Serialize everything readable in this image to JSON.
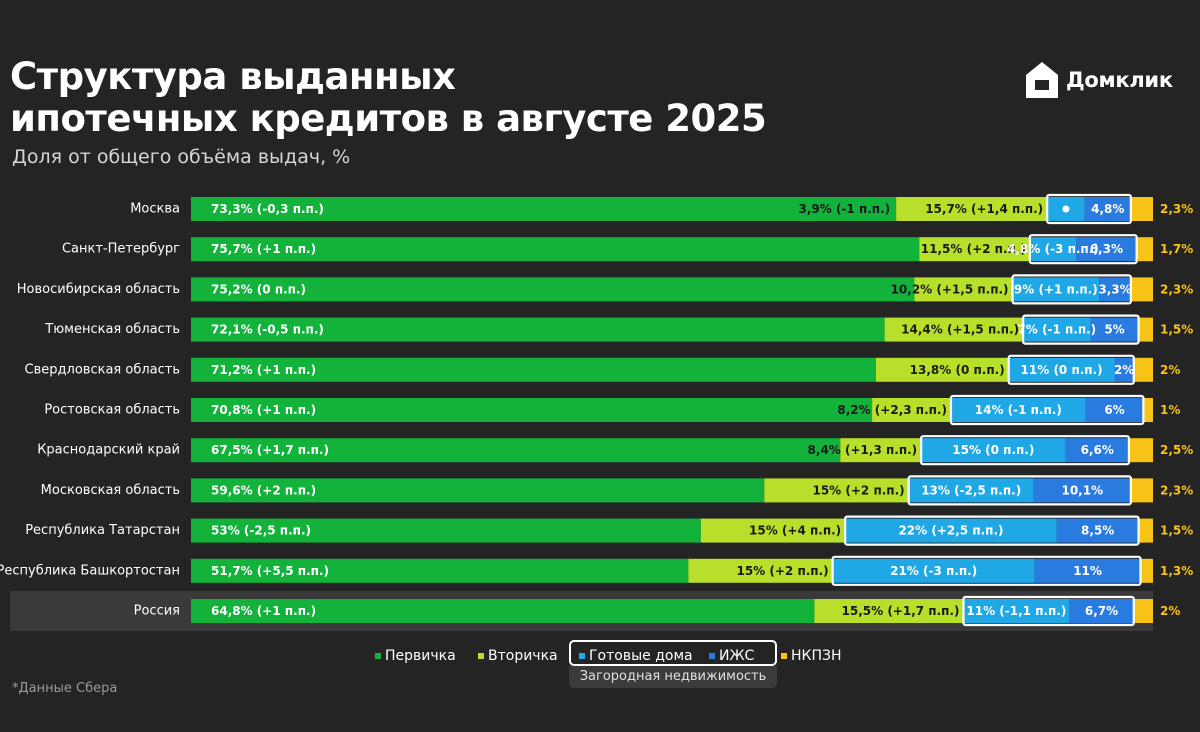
{
  "header": {
    "title_line1": "Структура выданных",
    "title_line2": "ипотечных кредитов в августе 2025",
    "subtitle": "Доля от общего объёма выдач, %"
  },
  "logo": {
    "text": "Домклик",
    "icon": "domclick-house-icon"
  },
  "footnote": "*Данные Сбера",
  "legend": {
    "group_label": "Загородная недвижимость",
    "items": [
      {
        "label": "Первичка",
        "color": "#12b23b"
      },
      {
        "label": "Вторичка",
        "color": "#b8e02a"
      },
      {
        "label": "Готовые дома",
        "color": "#20a8e6"
      },
      {
        "label": "ИЖС",
        "color": "#2a7be0"
      },
      {
        "label": "НКПЗН",
        "color": "#f7c317"
      }
    ]
  },
  "chart_data": {
    "type": "bar",
    "stacked": true,
    "orientation": "horizontal",
    "title": "Структура выданных ипотечных кредитов в августе 2025",
    "subtitle": "Доля от общего объёма выдач, %",
    "categories": [
      "Москва",
      "Санкт-Петербург",
      "Новосибирская область",
      "Тюменская область",
      "Свердловская область",
      "Ростовская область",
      "Краснодарский край",
      "Московская область",
      "Республика Татарстан",
      "Республика Башкортостан",
      "Россия"
    ],
    "highlight_category": "Россия",
    "series": [
      {
        "name": "Первичка",
        "color": "#12b23b",
        "values": [
          73.3,
          75.7,
          75.2,
          72.1,
          71.2,
          70.8,
          67.5,
          59.6,
          53,
          51.7,
          64.8
        ],
        "labels": [
          "73,3% (-0,3 п.п.)",
          "75,7% (+1 п.п.)",
          "75,2% (0 п.п.)",
          "72,1% (-0,5 п.п.)",
          "71,2% (+1 п.п.)",
          "70,8% (+1 п.п.)",
          "67,5% (+1,7 п.п.)",
          "59,6% (+2 п.п.)",
          "53% (-2,5 п.п.)",
          "51,7% (+5,5 п.п.)",
          "64,8% (+1 п.п.)"
        ]
      },
      {
        "name": "Вторичка",
        "color": "#b8e02a",
        "values": [
          15.7,
          11.5,
          10.2,
          14.4,
          13.8,
          8.2,
          8.4,
          15,
          15,
          15,
          15.5
        ],
        "labels": [
          "15,7% (+1,4 п.п.)",
          "11,5% (+2 п.п.)",
          "10,2% (+1,5 п.п.)",
          "14,4% (+1,5 п.п.)",
          "13,8% (0 п.п.)",
          "8,2% (+2,3 п.п.)",
          "8,4% (+1,3 п.п.)",
          "15% (+2 п.п.)",
          "15% (+4 п.п.)",
          "15% (+2 п.п.)",
          "15,5% (+1,7 п.п.)"
        ]
      },
      {
        "name": "Готовые дома",
        "color": "#20a8e6",
        "values": [
          3.9,
          4.8,
          9,
          7,
          11,
          14,
          15,
          13,
          22,
          21,
          11
        ],
        "labels": [
          "3,9% (-1 п.п.)",
          "4,8% (-3 п.п.)",
          "9% (+1 п.п.)",
          "7% (-1 п.п.)",
          "11% (0 п.п.)",
          "14% (-1 п.п.)",
          "15% (0 п.п.)",
          "13% (-2,5 п.п.)",
          "22% (+2,5 п.п.)",
          "21% (-3 п.п.)",
          "11% (-1,1 п.п.)"
        ]
      },
      {
        "name": "ИЖС",
        "color": "#2a7be0",
        "values": [
          4.8,
          6.3,
          3.3,
          5,
          2,
          6,
          6.6,
          10.1,
          8.5,
          11,
          6.7
        ],
        "labels": [
          "4,8%",
          "6,3%",
          "3,3%",
          "5%",
          "2%",
          "6%",
          "6,6%",
          "10,1%",
          "8,5%",
          "11%",
          "6,7%"
        ]
      },
      {
        "name": "НКПЗН",
        "color": "#f7c317",
        "values": [
          2.3,
          1.7,
          2.3,
          1.5,
          2,
          1,
          2.5,
          2.3,
          1.5,
          1.3,
          2
        ],
        "labels": [
          "2,3%",
          "1,7%",
          "2,3%",
          "1,5%",
          "2%",
          "1%",
          "2,5%",
          "2,3%",
          "1,5%",
          "1,3%",
          "2%"
        ]
      }
    ],
    "xlim": [
      0,
      100
    ],
    "legend_position": "bottom",
    "grid": false
  }
}
